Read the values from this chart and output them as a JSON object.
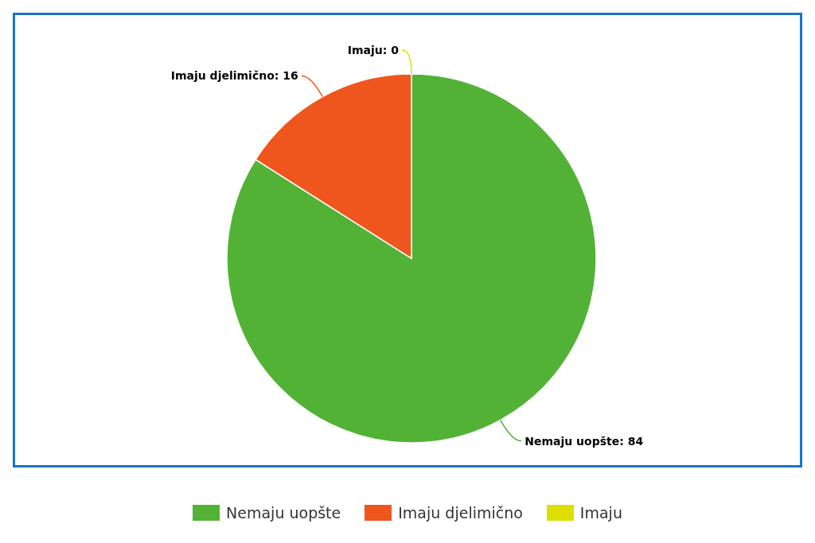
{
  "chart_data": {
    "type": "pie",
    "categories": [
      "Nemaju uopšte",
      "Imaju djelimično",
      "Imaju"
    ],
    "values": [
      84,
      16,
      0
    ],
    "value_labels": [
      "Nemaju uopšte: 84",
      "Imaju djelimično: 16",
      "Imaju: 0"
    ],
    "colors": [
      "#52b236",
      "#ee561d",
      "#dede00"
    ],
    "legend": "bottom"
  }
}
